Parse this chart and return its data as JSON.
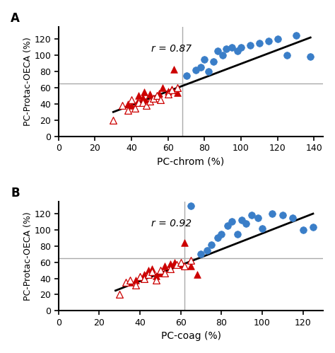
{
  "panel_A": {
    "title": "A",
    "xlabel": "PC-chrom (%)",
    "ylabel": "PC-Protac-OECA (%)",
    "r_value": "r = 0.87",
    "vline": 68,
    "hline": 65,
    "xlim": [
      0,
      145
    ],
    "ylim": [
      0,
      135
    ],
    "xticks": [
      0,
      20,
      40,
      60,
      80,
      100,
      120,
      140
    ],
    "yticks": [
      0,
      20,
      40,
      60,
      80,
      100,
      120
    ],
    "red_filled_x": [
      38,
      40,
      43,
      44,
      46,
      47,
      48,
      50,
      52,
      55,
      57,
      60,
      62,
      63,
      65
    ],
    "red_filled_y": [
      40,
      38,
      42,
      50,
      48,
      55,
      43,
      52,
      47,
      53,
      60,
      56,
      58,
      83,
      54
    ],
    "red_open_x": [
      30,
      35,
      38,
      40,
      42,
      44,
      46,
      48,
      50,
      52,
      54,
      56,
      60,
      62,
      65
    ],
    "red_open_y": [
      20,
      38,
      32,
      45,
      35,
      42,
      42,
      38,
      43,
      47,
      50,
      45,
      52,
      57,
      60
    ],
    "blue_filled_x": [
      70,
      75,
      78,
      80,
      82,
      85,
      87,
      90,
      92,
      95,
      98,
      100,
      105,
      110,
      115,
      120,
      125,
      130,
      138
    ],
    "blue_filled_y": [
      75,
      82,
      85,
      95,
      80,
      92,
      105,
      100,
      108,
      110,
      105,
      110,
      112,
      115,
      118,
      120,
      100,
      125,
      98
    ],
    "line_x": [
      30,
      138
    ],
    "line_y": [
      30,
      122
    ]
  },
  "panel_B": {
    "title": "B",
    "xlabel": "PC-coag (%)",
    "ylabel": "PC-Protac-OECA (%)",
    "r_value": "r = 0.92",
    "vline": 62,
    "hline": 65,
    "xlim": [
      0,
      130
    ],
    "ylim": [
      0,
      135
    ],
    "xticks": [
      0,
      20,
      40,
      60,
      80,
      100,
      120
    ],
    "yticks": [
      0,
      20,
      40,
      60,
      80,
      100,
      120
    ],
    "red_filled_x": [
      35,
      38,
      40,
      42,
      44,
      46,
      48,
      50,
      52,
      55,
      57,
      60,
      62,
      65,
      68
    ],
    "red_filled_y": [
      35,
      38,
      42,
      45,
      50,
      52,
      43,
      47,
      55,
      58,
      60,
      57,
      84,
      55,
      45
    ],
    "red_open_x": [
      30,
      33,
      35,
      38,
      40,
      42,
      44,
      46,
      48,
      50,
      52,
      55,
      58,
      60,
      62,
      65
    ],
    "red_open_y": [
      20,
      35,
      38,
      32,
      42,
      40,
      45,
      48,
      38,
      50,
      47,
      52,
      57,
      60,
      55,
      62
    ],
    "blue_filled_x": [
      65,
      70,
      73,
      75,
      78,
      80,
      83,
      85,
      88,
      90,
      92,
      95,
      98,
      100,
      105,
      110,
      115,
      120,
      125
    ],
    "blue_filled_y": [
      130,
      70,
      75,
      82,
      90,
      95,
      105,
      110,
      95,
      112,
      108,
      118,
      115,
      102,
      120,
      118,
      115,
      100,
      103
    ],
    "line_x": [
      28,
      125
    ],
    "line_y": [
      25,
      120
    ]
  },
  "red_filled_color": "#cc0000",
  "red_open_color": "#cc0000",
  "blue_color": "#3a7ec8",
  "line_color": "#000000",
  "refline_color": "#aaaaaa",
  "marker_size": 7,
  "linewidth": 2.0
}
